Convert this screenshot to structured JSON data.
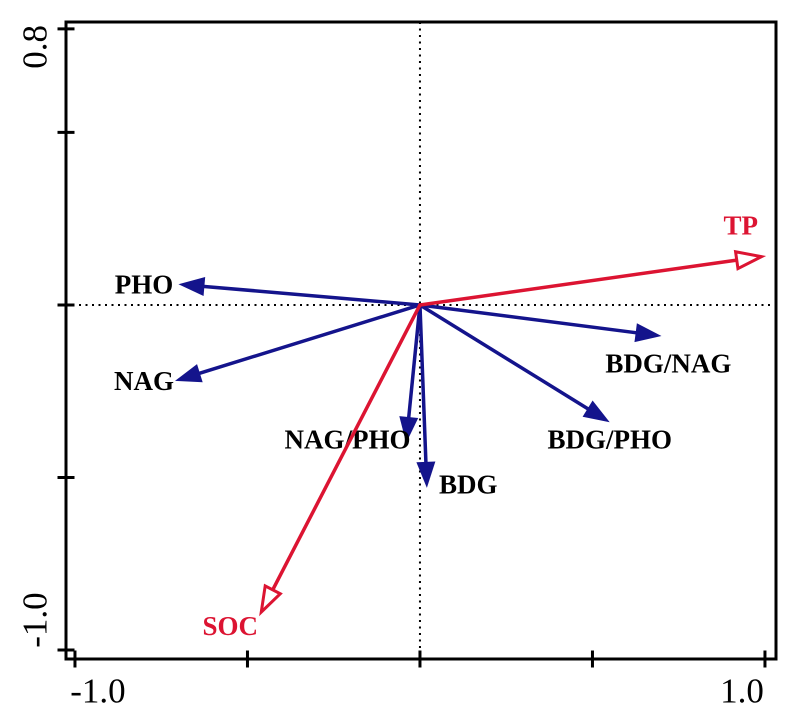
{
  "figure": {
    "background": "#ffffff",
    "frame_color": "#000000"
  },
  "chart_data": {
    "type": "scatter",
    "subtype": "ordination-biplot-arrows",
    "title": "",
    "xlabel": "",
    "ylabel": "",
    "xlim": [
      -1.026,
      1.032
    ],
    "ylim": [
      -1.026,
      0.82
    ],
    "x_ticks": [
      -1.0,
      -0.5,
      0.0,
      0.5,
      1.0
    ],
    "x_tick_labels": [
      "-1.0",
      "",
      "",
      "",
      "1.0"
    ],
    "y_ticks": [
      0.8,
      0.5,
      0.0,
      -0.5,
      -1.0
    ],
    "y_tick_labels": [
      "0.8",
      "",
      "",
      "",
      "-1.0"
    ],
    "grid": false,
    "box": true,
    "reference_lines": [
      {
        "axis": "vertical",
        "at": 0,
        "style": "dotted",
        "color": "#000000"
      },
      {
        "axis": "horizontal",
        "at": 0,
        "style": "dotted",
        "color": "#000000"
      }
    ],
    "series": [
      {
        "name": "enzyme-response-arrows",
        "color": "#14148C",
        "head": "filled",
        "label_color": "#000000",
        "arrows": [
          {
            "label": "PHO",
            "x": -0.7,
            "y": 0.06,
            "label_x": -0.8,
            "label_y": 0.06
          },
          {
            "label": "NAG",
            "x": -0.71,
            "y": -0.22,
            "label_x": -0.8,
            "label_y": -0.22
          },
          {
            "label": "NAG/PHO",
            "x": -0.04,
            "y": -0.4,
            "label_x": -0.21,
            "label_y": -0.39
          },
          {
            "label": "BDG",
            "x": 0.02,
            "y": -0.53,
            "label_x": 0.14,
            "label_y": -0.52
          },
          {
            "label": "BDG/PHO",
            "x": 0.55,
            "y": -0.34,
            "label_x": 0.55,
            "label_y": -0.39
          },
          {
            "label": "BDG/NAG",
            "x": 0.7,
            "y": -0.09,
            "label_x": 0.72,
            "label_y": -0.17
          }
        ]
      },
      {
        "name": "environmental-explanatory-arrows",
        "color": "#DC1432",
        "head": "open",
        "label_color": "#DC1432",
        "arrows": [
          {
            "label": "TP",
            "x": 0.99,
            "y": 0.14,
            "label_x": 0.93,
            "label_y": 0.23
          },
          {
            "label": "SOC",
            "x": -0.46,
            "y": -0.89,
            "label_x": -0.55,
            "label_y": -0.93
          }
        ]
      }
    ]
  }
}
